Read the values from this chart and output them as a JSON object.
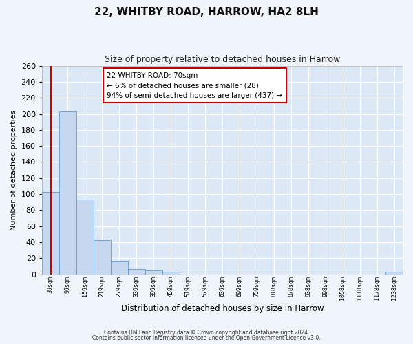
{
  "title": "22, WHITBY ROAD, HARROW, HA2 8LH",
  "subtitle": "Size of property relative to detached houses in Harrow",
  "xlabel": "Distribution of detached houses by size in Harrow",
  "ylabel": "Number of detached properties",
  "bar_labels": [
    "39sqm",
    "99sqm",
    "159sqm",
    "219sqm",
    "279sqm",
    "339sqm",
    "399sqm",
    "459sqm",
    "519sqm",
    "579sqm",
    "639sqm",
    "699sqm",
    "759sqm",
    "818sqm",
    "878sqm",
    "938sqm",
    "998sqm",
    "1058sqm",
    "1118sqm",
    "1178sqm",
    "1238sqm"
  ],
  "bar_values": [
    103,
    203,
    93,
    43,
    16,
    7,
    5,
    3,
    0,
    0,
    0,
    0,
    0,
    0,
    0,
    0,
    0,
    0,
    0,
    0,
    3
  ],
  "bar_color": "#c5d8f0",
  "bar_edge_color": "#5b9bd5",
  "ylim": [
    0,
    260
  ],
  "yticks": [
    0,
    20,
    40,
    60,
    80,
    100,
    120,
    140,
    160,
    180,
    200,
    220,
    240,
    260
  ],
  "property_line_color": "#cc0000",
  "annotation_text": "22 WHITBY ROAD: 70sqm\n← 6% of detached houses are smaller (28)\n94% of semi-detached houses are larger (437) →",
  "annotation_box_color": "#ffffff",
  "annotation_box_edge_color": "#cc0000",
  "footnote1": "Contains HM Land Registry data © Crown copyright and database right 2024.",
  "footnote2": "Contains public sector information licensed under the Open Government Licence v3.0.",
  "fig_bg_color": "#f0f4fb",
  "plot_bg_color": "#dce8f5"
}
